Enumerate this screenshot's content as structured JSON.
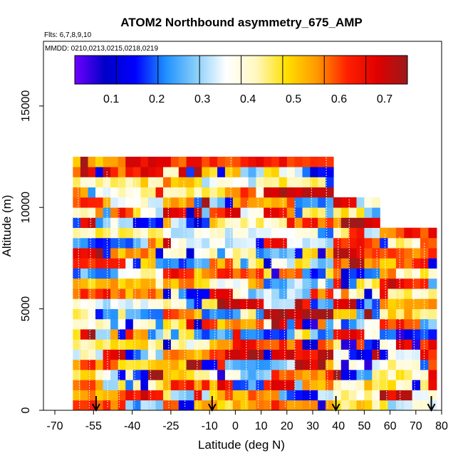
{
  "chart_data": {
    "type": "heatmap",
    "title": "ATOM2 Northbound asymmetry_675_AMP",
    "flights_label": "Flts: 6,7,8,9,10",
    "dates_label": "MMDD: 0210,0213,0215,0218,0219",
    "xlabel": "Latitude (deg N)",
    "ylabel": "Altitude (m)",
    "xlim": [
      -70,
      85
    ],
    "ylim": [
      0,
      18000
    ],
    "x_ticks": [
      {
        "value": -70,
        "label": "-70"
      },
      {
        "value": -55,
        "label": "-55"
      },
      {
        "value": -40,
        "label": "-40"
      },
      {
        "value": -25,
        "label": "-25"
      },
      {
        "value": -10,
        "label": "-10"
      },
      {
        "value": 0,
        "label": "0"
      },
      {
        "value": 10,
        "label": "10"
      },
      {
        "value": 20,
        "label": "20"
      },
      {
        "value": 30,
        "label": "30"
      },
      {
        "value": 40,
        "label": "40"
      },
      {
        "value": 50,
        "label": "50"
      },
      {
        "value": 60,
        "label": "60"
      },
      {
        "value": 70,
        "label": "70"
      },
      {
        "value": 80,
        "label": "80"
      }
    ],
    "y_ticks": [
      {
        "value": 0,
        "label": "0"
      },
      {
        "value": 5000,
        "label": "5000"
      },
      {
        "value": 10000,
        "label": "10000"
      },
      {
        "value": 15000,
        "label": "15000"
      }
    ],
    "colorbar": {
      "range": [
        0.02,
        0.75
      ],
      "ticks": [
        {
          "value": 0.1,
          "label": "0.1"
        },
        {
          "value": 0.2,
          "label": "0.2"
        },
        {
          "value": 0.3,
          "label": "0.3"
        },
        {
          "value": 0.4,
          "label": "0.4"
        },
        {
          "value": 0.5,
          "label": "0.5"
        },
        {
          "value": 0.6,
          "label": "0.6"
        },
        {
          "value": 0.7,
          "label": "0.7"
        }
      ],
      "colors": [
        "#6f00ff",
        "#0000c8",
        "#0000ff",
        "#1e90ff",
        "#87cefa",
        "#ffffff",
        "#fff8c0",
        "#ffe000",
        "#ff9900",
        "#ff2000",
        "#e00000",
        "#9c1a1a"
      ]
    },
    "arrows_latitude": [
      -54,
      -9,
      39,
      76
    ],
    "flight_segments": [
      {
        "lat_start": -63,
        "lat_end": -28,
        "alt_bottom": 0,
        "alt_top": 12500
      },
      {
        "lat_start": -28,
        "lat_end": 38,
        "alt_bottom": 0,
        "alt_top": 12500
      },
      {
        "lat_start": 38,
        "lat_end": 56,
        "alt_bottom": 0,
        "alt_top": 10400
      },
      {
        "lat_start": 56,
        "lat_end": 78,
        "alt_bottom": 0,
        "alt_top": 8900
      }
    ]
  }
}
